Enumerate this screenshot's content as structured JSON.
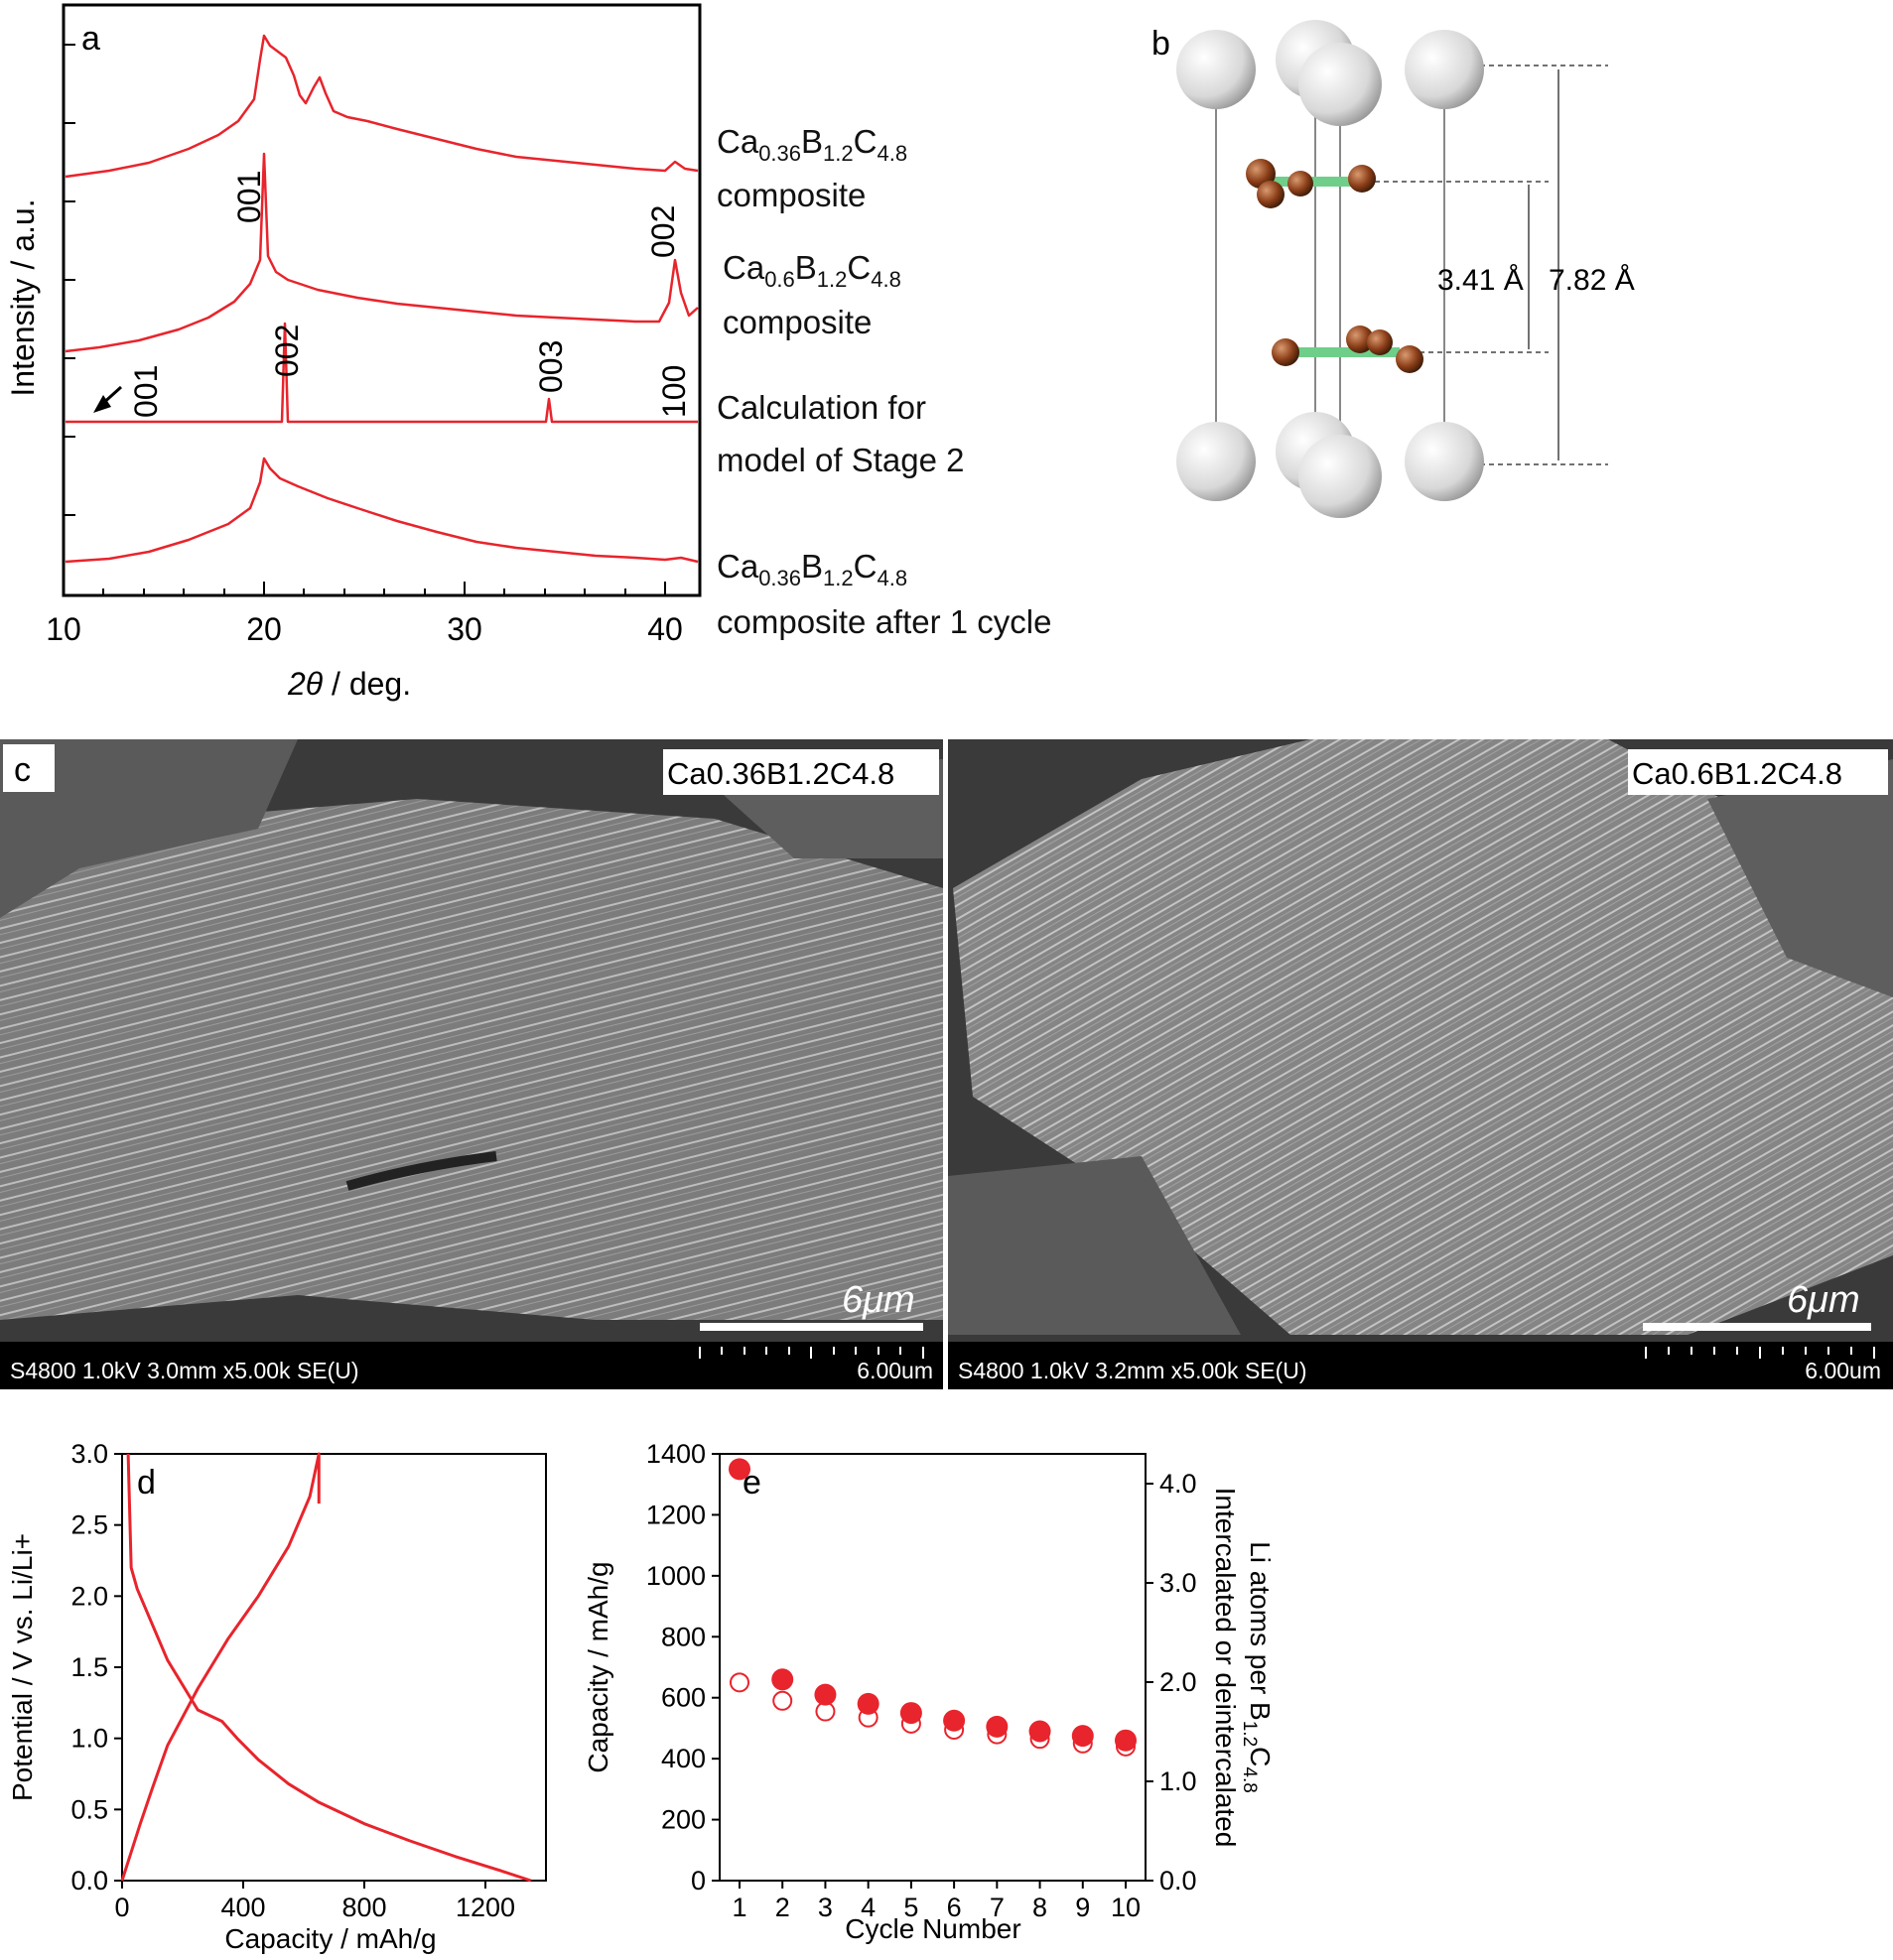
{
  "figure": {
    "panel_a": {
      "label": "a",
      "ylabel": "Intensity / a.u.",
      "xlabel_symbol": "2θ",
      "xlabel_unit": " / deg.",
      "xticks": [
        "10",
        "20",
        "30",
        "40"
      ],
      "peak_labels": [
        "001",
        "002",
        "001",
        "002",
        "003",
        "100"
      ],
      "legend": [
        {
          "formula": [
            "Ca",
            "0.36",
            "B",
            "1.2",
            "C",
            "4.8"
          ],
          "line2": "composite"
        },
        {
          "formula": [
            "Ca",
            "0.6",
            "B",
            "1.2",
            "C",
            "4.8"
          ],
          "line2": "composite"
        },
        {
          "line1": "Calculation for",
          "line2": "model of Stage 2"
        },
        {
          "formula": [
            "Ca",
            "0.36",
            "B",
            "1.2",
            "C",
            "4.8"
          ],
          "line2": "composite after 1 cycle"
        }
      ],
      "color": "#e8242c"
    },
    "panel_b": {
      "label": "b",
      "distance_inner": "3.41 Å",
      "distance_outer": "7.82 Å"
    },
    "panel_c": {
      "label": "c",
      "left": {
        "sample": "Ca0.36B1.2C4.8",
        "scale_label": "6μm",
        "info": "S4800 1.0kV 3.0mm x5.00k SE(U)",
        "scale_text": "6.00um"
      },
      "right": {
        "sample": "Ca0.6B1.2C4.8",
        "scale_label": "6μm",
        "info": "S4800 1.0kV 3.2mm x5.00k SE(U)",
        "scale_text": "6.00um"
      }
    },
    "panel_d": {
      "label": "d",
      "xlabel": "Capacity / mAh/g",
      "ylabel": "Potential / V vs. Li/Li+"
    },
    "panel_e": {
      "label": "e",
      "xlabel": "Cycle Number",
      "ylabel_left": "Capacity / mAh/g",
      "ylabel_right_1": "Intercalated or deintercalated",
      "ylabel_right_2": "Li atoms per B",
      "ylabel_right_sub1": "1.2",
      "ylabel_right_c": "C",
      "ylabel_right_sub2": "4.8"
    }
  },
  "chart_data": [
    {
      "type": "line",
      "panel": "d",
      "xlabel": "Capacity / mAh/g",
      "ylabel": "Potential / V vs. Li/Li+",
      "xlim": [
        0,
        1400
      ],
      "ylim": [
        0,
        3.0
      ],
      "xticks": [
        "0",
        "400",
        "800",
        "1200"
      ],
      "yticks": [
        "0.0",
        "0.5",
        "1.0",
        "1.5",
        "2.0",
        "2.5",
        "3.0"
      ],
      "series": [
        {
          "name": "",
          "x": [
            20,
            30,
            50,
            80,
            150,
            250,
            330,
            380,
            450,
            550,
            650,
            800,
            950,
            1100,
            1250,
            1350
          ],
          "y": [
            3.0,
            2.2,
            2.05,
            1.9,
            1.55,
            1.2,
            1.12,
            1.0,
            0.85,
            0.68,
            0.55,
            0.4,
            0.28,
            0.17,
            0.07,
            0.0
          ]
        },
        {
          "name": "",
          "x": [
            0,
            30,
            60,
            100,
            150,
            250,
            350,
            450,
            550,
            620,
            650,
            650
          ],
          "y": [
            0.0,
            0.2,
            0.4,
            0.65,
            0.95,
            1.35,
            1.7,
            2.0,
            2.35,
            2.7,
            3.0,
            2.65
          ]
        }
      ],
      "color": "#e8242c"
    },
    {
      "type": "scatter",
      "panel": "e",
      "xlabel": "Cycle Number",
      "ylabel": "Capacity / mAh/g",
      "xlim": [
        1,
        10
      ],
      "ylim": [
        0,
        1400
      ],
      "y2lim": [
        0,
        4.3
      ],
      "xticks": [
        "1",
        "2",
        "3",
        "4",
        "5",
        "6",
        "7",
        "8",
        "9",
        "10"
      ],
      "yticks": [
        "0",
        "200",
        "400",
        "600",
        "800",
        "1000",
        "1200",
        "1400"
      ],
      "y2ticks": [
        "0.0",
        "1.0",
        "2.0",
        "3.0",
        "4.0"
      ],
      "x": [
        1,
        2,
        3,
        4,
        5,
        6,
        7,
        8,
        9,
        10
      ],
      "series": [
        {
          "name": "",
          "filled": true,
          "values": [
            1350,
            660,
            610,
            580,
            550,
            525,
            505,
            490,
            475,
            460
          ]
        },
        {
          "name": "",
          "filled": false,
          "values": [
            650,
            590,
            555,
            535,
            515,
            495,
            480,
            465,
            450,
            440
          ]
        }
      ],
      "color": "#e8242c"
    }
  ]
}
